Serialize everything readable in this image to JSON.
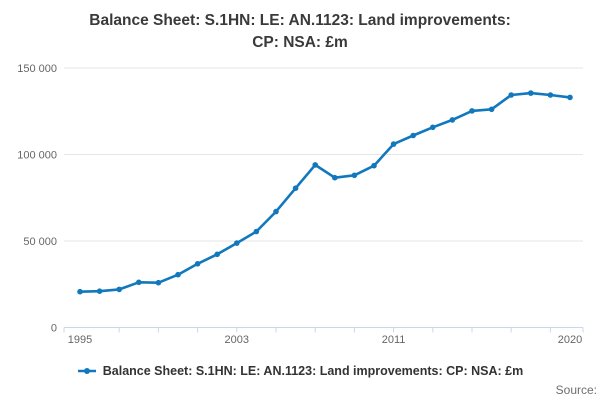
{
  "title": {
    "line1": "Balance Sheet: S.1HN: LE: AN.1123: Land improvements:",
    "line2": "CP: NSA: £m"
  },
  "source": {
    "label": "Source:"
  },
  "colors": {
    "series": "#1178bd",
    "axis_line": "#ccd6eb",
    "gridline": "#e6e6e6",
    "title_text": "#3a3a3a",
    "axis_label": "#666666",
    "legend_text": "#333333",
    "source_text": "#6e6e6e",
    "background": "#ffffff"
  },
  "chart_data": {
    "type": "line",
    "title": "Balance Sheet: S.1HN: LE: AN.1123: Land improvements: CP: NSA: £m",
    "xlabel": "",
    "ylabel": "",
    "x": [
      1995,
      1996,
      1997,
      1998,
      1999,
      2000,
      2001,
      2002,
      2003,
      2004,
      2005,
      2006,
      2007,
      2008,
      2009,
      2010,
      2011,
      2012,
      2013,
      2014,
      2015,
      2016,
      2017,
      2018,
      2019,
      2020
    ],
    "series": [
      {
        "name": "Balance Sheet: S.1HN: LE: AN.1123: Land improvements: CP: NSA: £m",
        "color": "#1178bd",
        "values": [
          20700,
          21000,
          22000,
          26100,
          25900,
          30500,
          36800,
          42300,
          48800,
          55500,
          67000,
          80500,
          94000,
          86600,
          88000,
          93500,
          106000,
          111000,
          115700,
          120000,
          125200,
          126100,
          134400,
          135500,
          134400,
          133000
        ]
      }
    ],
    "ylim": [
      0,
      150000
    ],
    "yticks": [
      {
        "value": 0,
        "label": "0"
      },
      {
        "value": 50000,
        "label": "50 000"
      },
      {
        "value": 100000,
        "label": "100 000"
      },
      {
        "value": 150000,
        "label": "150 000"
      }
    ],
    "xticks": [
      {
        "value": 1995,
        "label": "1995"
      },
      {
        "value": 2003,
        "label": "2003"
      },
      {
        "value": 2011,
        "label": "2011"
      },
      {
        "value": 2020,
        "label": "2020"
      }
    ],
    "grid": "horizontal",
    "legend_position": "bottom",
    "marker": "circle"
  }
}
